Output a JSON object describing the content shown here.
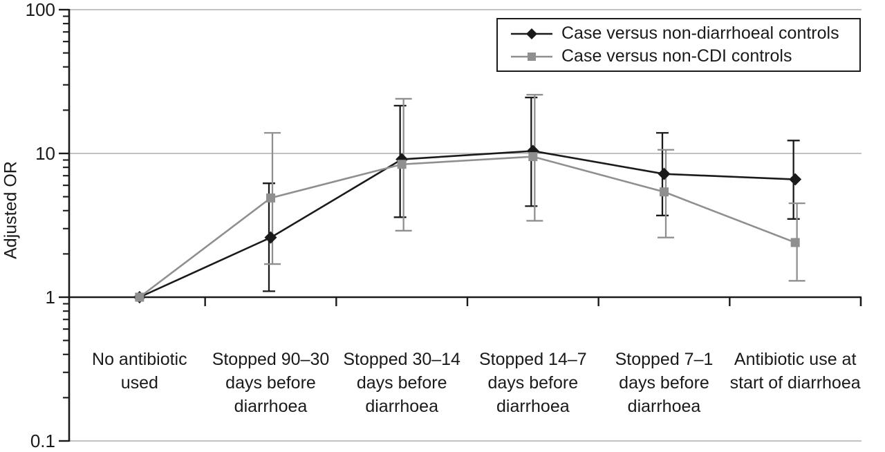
{
  "figure": {
    "ylabel": "Adjusted OR"
  },
  "colors": {
    "series1": "#1a1a1a",
    "series2": "#8f8f8f",
    "gridline": "#aeaeae",
    "axis": "#1a1a1a",
    "text": "#1a1a1a",
    "background": "#ffffff"
  },
  "chart_data": {
    "type": "line",
    "y_scale": "log10",
    "title": "",
    "xlabel": "",
    "ylabel": "Adjusted OR",
    "ylim": [
      0.1,
      100
    ],
    "y_ticks": [
      100,
      10,
      1,
      0.1
    ],
    "y_tick_labels": [
      "100",
      "10",
      "1",
      "0.1"
    ],
    "gridlines_at": [
      100,
      10,
      0.1
    ],
    "baseline_value": 1,
    "legend_position": "top-right",
    "categories": [
      "No antibiotic used",
      "Stopped 90–30 days before diarrhoea",
      "Stopped 30–14 days before diarrhoea",
      "Stopped 14–7 days before diarrhoea",
      "Stopped 7–1 days before diarrhoea",
      "Antibiotic use at start of diarrhoea"
    ],
    "categories_lines": [
      [
        "No antibiotic",
        "used"
      ],
      [
        "Stopped 90–30",
        "days before",
        "diarrhoea"
      ],
      [
        "Stopped 30–14",
        "days before",
        "diarrhoea"
      ],
      [
        "Stopped 14–7",
        "days before",
        "diarrhoea"
      ],
      [
        "Stopped 7–1",
        "days before",
        "diarrhoea"
      ],
      [
        "Antibiotic use at",
        "start of diarrhoea"
      ]
    ],
    "series": [
      {
        "name": "Case versus non-diarrhoeal controls",
        "marker": "diamond",
        "color": "#1a1a1a",
        "values": [
          1.0,
          2.6,
          9.1,
          10.4,
          7.2,
          6.6
        ],
        "ci_low": [
          null,
          1.1,
          3.6,
          4.3,
          3.7,
          3.5
        ],
        "ci_high": [
          null,
          6.2,
          21.5,
          24.5,
          13.9,
          12.3
        ]
      },
      {
        "name": "Case versus non-CDI controls",
        "marker": "square",
        "color": "#8f8f8f",
        "values": [
          1.0,
          4.9,
          8.4,
          9.5,
          5.4,
          2.4
        ],
        "ci_low": [
          null,
          1.7,
          2.9,
          3.4,
          2.6,
          1.3
        ],
        "ci_high": [
          null,
          13.9,
          24.0,
          25.6,
          10.6,
          4.5
        ]
      }
    ]
  }
}
